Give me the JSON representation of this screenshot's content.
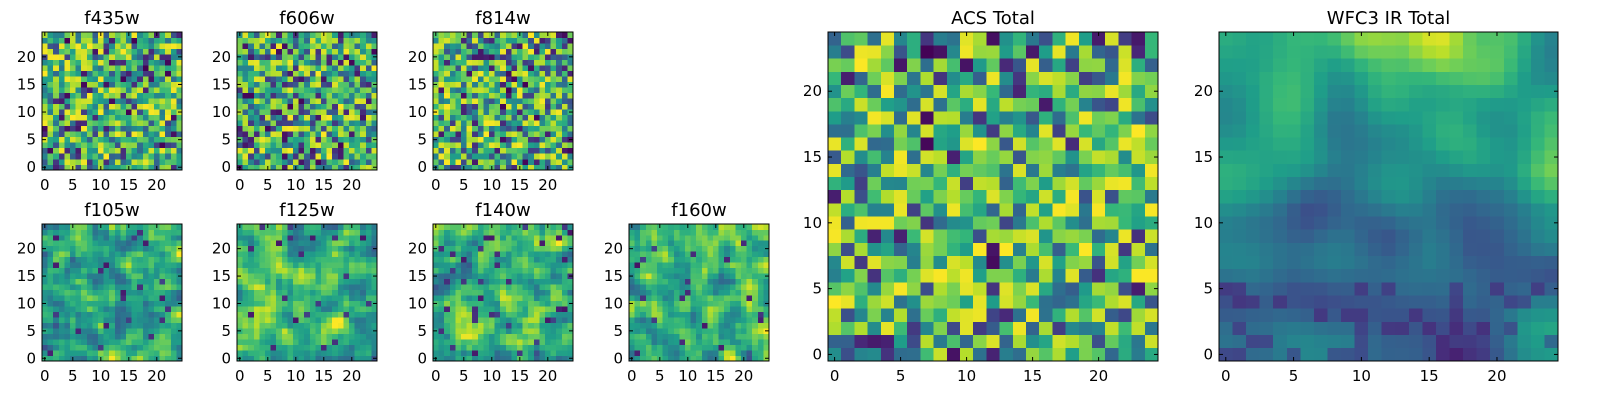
{
  "chart_data": [
    {
      "type": "heatmap",
      "title": "f435w",
      "grid_size": 25,
      "xlim": [
        0,
        24
      ],
      "ylim": [
        0,
        24
      ],
      "x_ticks": [
        0,
        5,
        10,
        15,
        20
      ],
      "y_ticks": [
        0,
        5,
        10,
        15,
        20
      ],
      "pattern": "noise",
      "seed": 11
    },
    {
      "type": "heatmap",
      "title": "f606w",
      "grid_size": 25,
      "xlim": [
        0,
        24
      ],
      "ylim": [
        0,
        24
      ],
      "x_ticks": [
        0,
        5,
        10,
        15,
        20
      ],
      "y_ticks": [
        0,
        5,
        10,
        15,
        20
      ],
      "pattern": "noise",
      "seed": 23
    },
    {
      "type": "heatmap",
      "title": "f814w",
      "grid_size": 25,
      "xlim": [
        0,
        24
      ],
      "ylim": [
        0,
        24
      ],
      "x_ticks": [
        0,
        5,
        10,
        15,
        20
      ],
      "y_ticks": [
        0,
        5,
        10,
        15,
        20
      ],
      "pattern": "noise",
      "seed": 37
    },
    {
      "type": "heatmap",
      "title": "f105w",
      "grid_size": 25,
      "xlim": [
        0,
        24
      ],
      "ylim": [
        0,
        24
      ],
      "x_ticks": [
        0,
        5,
        10,
        15,
        20
      ],
      "y_ticks": [
        0,
        5,
        10,
        15,
        20
      ],
      "pattern": "smooth",
      "seed": 41
    },
    {
      "type": "heatmap",
      "title": "f125w",
      "grid_size": 25,
      "xlim": [
        0,
        24
      ],
      "ylim": [
        0,
        24
      ],
      "x_ticks": [
        0,
        5,
        10,
        15,
        20
      ],
      "y_ticks": [
        0,
        5,
        10,
        15,
        20
      ],
      "pattern": "smooth",
      "seed": 53
    },
    {
      "type": "heatmap",
      "title": "f140w",
      "grid_size": 25,
      "xlim": [
        0,
        24
      ],
      "ylim": [
        0,
        24
      ],
      "x_ticks": [
        0,
        5,
        10,
        15,
        20
      ],
      "y_ticks": [
        0,
        5,
        10,
        15,
        20
      ],
      "pattern": "smooth",
      "seed": 67
    },
    {
      "type": "heatmap",
      "title": "f160w",
      "grid_size": 25,
      "xlim": [
        0,
        24
      ],
      "ylim": [
        0,
        24
      ],
      "x_ticks": [
        0,
        5,
        10,
        15,
        20
      ],
      "y_ticks": [
        0,
        5,
        10,
        15,
        20
      ],
      "pattern": "smooth",
      "seed": 79
    },
    {
      "type": "heatmap",
      "title": "ACS Total",
      "grid_size": 25,
      "xlim": [
        0,
        24
      ],
      "ylim": [
        0,
        24
      ],
      "x_ticks": [
        0,
        5,
        10,
        15,
        20
      ],
      "y_ticks": [
        0,
        5,
        10,
        15,
        20
      ],
      "pattern": "acs",
      "seed": 97
    },
    {
      "type": "heatmap",
      "title": "WFC3 IR Total",
      "grid_size": 25,
      "xlim": [
        0,
        24
      ],
      "ylim": [
        0,
        24
      ],
      "x_ticks": [
        0,
        5,
        10,
        15,
        20
      ],
      "y_ticks": [
        0,
        5,
        10,
        15,
        20
      ],
      "pattern": "ir",
      "seed": 103
    }
  ],
  "colormap": {
    "name": "viridis",
    "stops": [
      "#440154",
      "#482878",
      "#3e4989",
      "#31688e",
      "#26828e",
      "#1f9e89",
      "#35b779",
      "#6ece58",
      "#b5de2b",
      "#fde725"
    ]
  }
}
